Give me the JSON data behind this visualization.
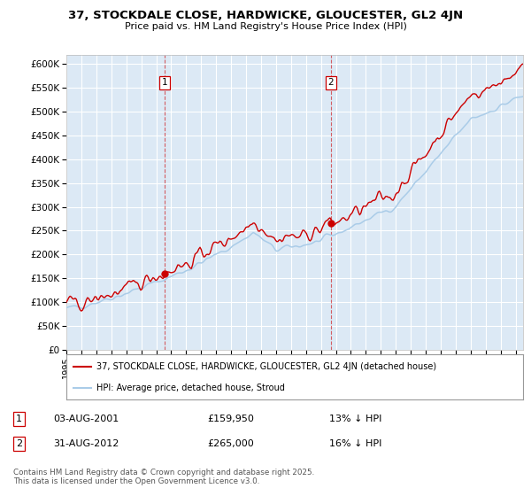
{
  "title": "37, STOCKDALE CLOSE, HARDWICKE, GLOUCESTER, GL2 4JN",
  "subtitle": "Price paid vs. HM Land Registry's House Price Index (HPI)",
  "ylabel_ticks": [
    "£0",
    "£50K",
    "£100K",
    "£150K",
    "£200K",
    "£250K",
    "£300K",
    "£350K",
    "£400K",
    "£450K",
    "£500K",
    "£550K",
    "£600K"
  ],
  "ytick_vals": [
    0,
    50000,
    100000,
    150000,
    200000,
    250000,
    300000,
    350000,
    400000,
    450000,
    500000,
    550000,
    600000
  ],
  "ylim": [
    0,
    620000
  ],
  "xlim_start": 1995.0,
  "xlim_end": 2025.5,
  "hpi_color": "#aacce8",
  "price_color": "#cc0000",
  "marker1_date": 2001.58,
  "marker1_price": 159950,
  "marker1_label": "1",
  "marker2_date": 2012.66,
  "marker2_price": 265000,
  "marker2_label": "2",
  "legend_line1": "37, STOCKDALE CLOSE, HARDWICKE, GLOUCESTER, GL2 4JN (detached house)",
  "legend_line2": "HPI: Average price, detached house, Stroud",
  "annotation1_box": "1",
  "annotation1_date": "03-AUG-2001",
  "annotation1_price": "£159,950",
  "annotation1_hpi": "13% ↓ HPI",
  "annotation2_box": "2",
  "annotation2_date": "31-AUG-2012",
  "annotation2_price": "£265,000",
  "annotation2_hpi": "16% ↓ HPI",
  "footer": "Contains HM Land Registry data © Crown copyright and database right 2025.\nThis data is licensed under the Open Government Licence v3.0.",
  "background_color": "#dce9f5",
  "plot_bg_color": "#dce9f5",
  "grid_color": "#ffffff"
}
